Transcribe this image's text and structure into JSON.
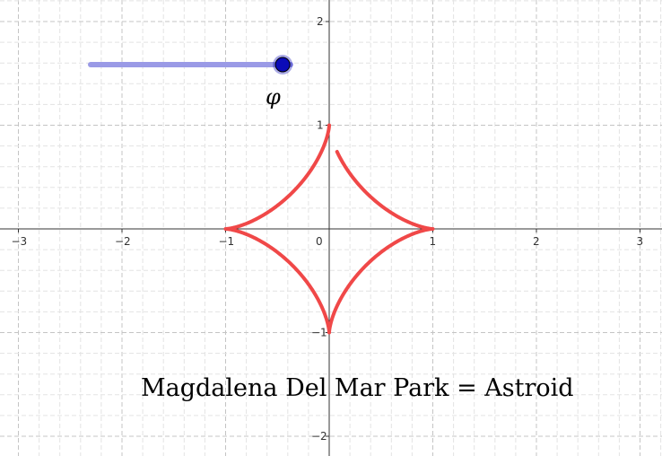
{
  "graph": {
    "axes": {
      "x_ticks": [
        "−3",
        "−2",
        "−1",
        "0",
        "1",
        "2",
        "3"
      ],
      "y_ticks": [
        "2",
        "1",
        "−1",
        "−2"
      ]
    },
    "grid": true,
    "colors": {
      "curve": "#f04848",
      "slider_track": "#9a9ae6",
      "slider_knob": "#0b0bb8",
      "axis": "#333333",
      "grid_minor": "#e3e3e3",
      "grid_major": "#c4c4c4"
    }
  },
  "slider": {
    "name": "φ",
    "value_fraction": 0.96
  },
  "curve": {
    "name": "Astroid",
    "type": "astroid",
    "param_start_deg": 90,
    "param_end_deg": 425
  },
  "caption": {
    "text": "Magdalena Del Mar Park = Astroid"
  }
}
